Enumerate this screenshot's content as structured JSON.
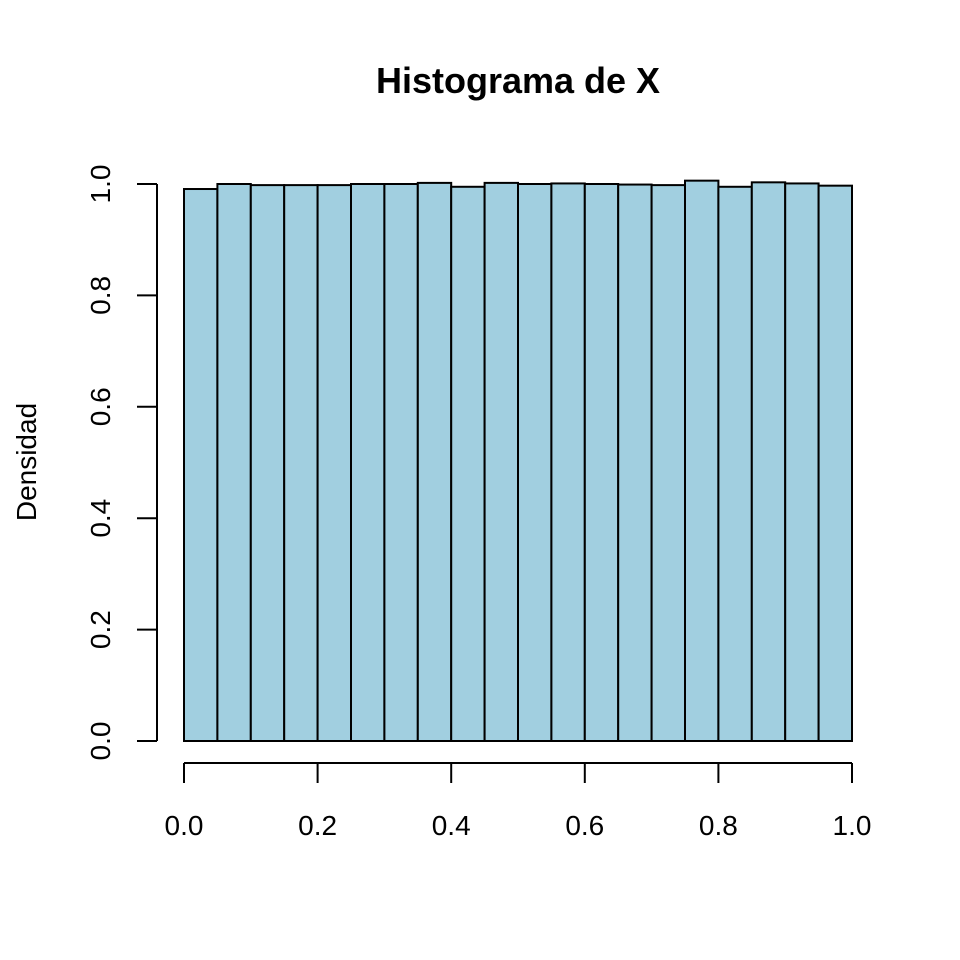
{
  "chart_data": {
    "type": "bar",
    "title": "Histograma de X",
    "xlabel": "",
    "ylabel": "Densidad",
    "bin_edges": [
      0.0,
      0.05,
      0.1,
      0.15,
      0.2,
      0.25,
      0.3,
      0.35,
      0.4,
      0.45,
      0.5,
      0.55,
      0.6,
      0.65,
      0.7,
      0.75,
      0.8,
      0.85,
      0.9,
      0.95,
      1.0
    ],
    "values": [
      0.991,
      1.0,
      0.998,
      0.998,
      0.998,
      1.0,
      1.0,
      1.002,
      0.995,
      1.002,
      1.0,
      1.001,
      1.0,
      0.999,
      0.998,
      1.006,
      0.995,
      1.003,
      1.001,
      0.997
    ],
    "xlim": [
      0.0,
      1.0
    ],
    "ylim": [
      0.0,
      1.0
    ],
    "x_ticks": [
      "0.0",
      "0.2",
      "0.4",
      "0.6",
      "0.8",
      "1.0"
    ],
    "y_ticks": [
      "0.0",
      "0.2",
      "0.4",
      "0.6",
      "0.8",
      "1.0"
    ],
    "bar_color": "#a1cfe0",
    "edge_color": "#000000",
    "grid": false,
    "legend": "none"
  }
}
